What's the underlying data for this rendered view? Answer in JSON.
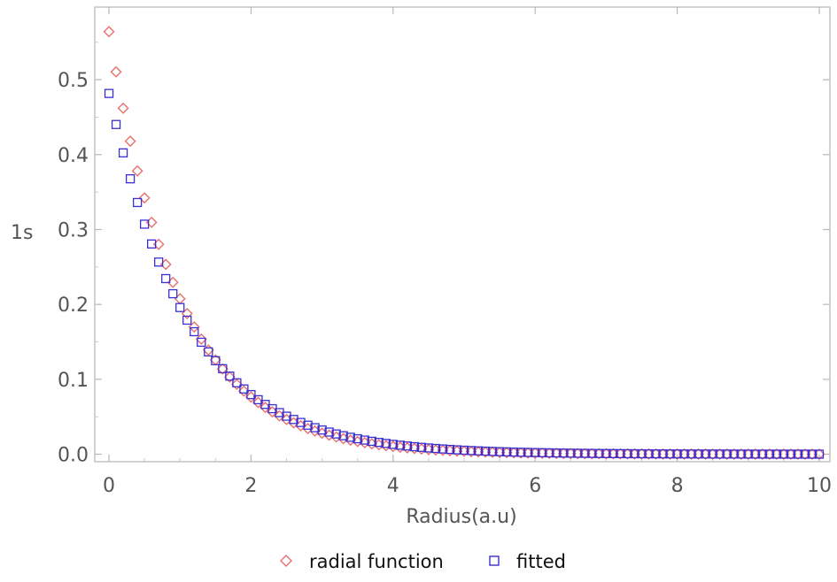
{
  "chart_data": {
    "type": "scatter",
    "title": "",
    "xlabel": "Radius(a.u)",
    "ylabel": "1s",
    "xlim": [
      -0.2,
      10.15
    ],
    "ylim": [
      -0.01,
      0.597
    ],
    "xticks": [
      0,
      2,
      4,
      6,
      8,
      10
    ],
    "xtick_labels": [
      "0",
      "2",
      "4",
      "6",
      "8",
      "10"
    ],
    "yticks": [
      0.0,
      0.1,
      0.2,
      0.3,
      0.4,
      0.5
    ],
    "ytick_labels": [
      "0.0",
      "0.1",
      "0.2",
      "0.3",
      "0.4",
      "0.5"
    ],
    "grid": false,
    "legend_position": "bottom",
    "series": [
      {
        "name": "radial function",
        "marker": "diamond",
        "color": "#e8706c",
        "model": "y = 0.5642 * exp(-1.0 * x)",
        "x_range": [
          0,
          10
        ],
        "x_step": 0.1
      },
      {
        "name": "fitted",
        "marker": "square",
        "color": "#3a2fd0",
        "model": "y = 0.4817 * exp(-0.9 * x)",
        "x_range": [
          0,
          10
        ],
        "x_step": 0.1
      }
    ]
  }
}
